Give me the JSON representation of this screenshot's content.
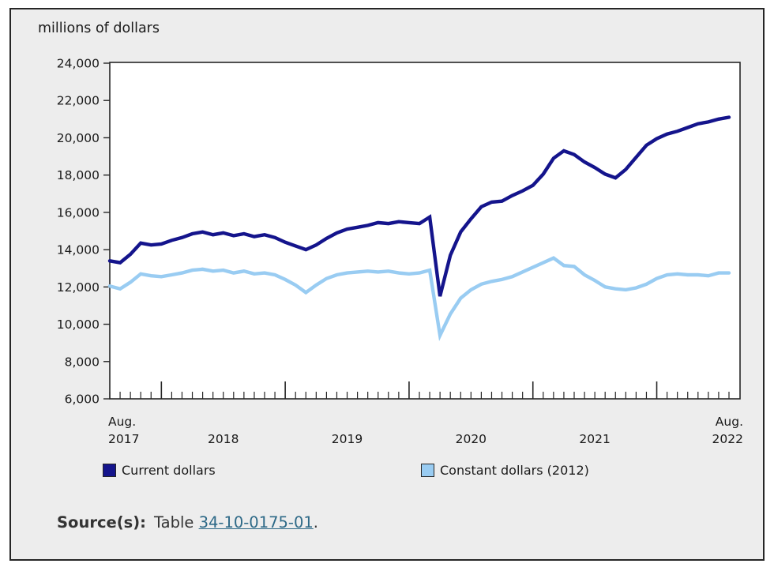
{
  "panel": {
    "title": "millions of dollars"
  },
  "chart_data": {
    "type": "line",
    "title": "millions of dollars",
    "ylabel": "millions of dollars",
    "ylim": [
      6000,
      24000
    ],
    "ytick_step": 2000,
    "grid": false,
    "legend_position": "bottom",
    "x_start": "Aug 2017",
    "x_end": "Aug 2022",
    "months": [
      "Aug 2017",
      "Sep 2017",
      "Oct 2017",
      "Nov 2017",
      "Dec 2017",
      "Jan 2018",
      "Feb 2018",
      "Mar 2018",
      "Apr 2018",
      "May 2018",
      "Jun 2018",
      "Jul 2018",
      "Aug 2018",
      "Sep 2018",
      "Oct 2018",
      "Nov 2018",
      "Dec 2018",
      "Jan 2019",
      "Feb 2019",
      "Mar 2019",
      "Apr 2019",
      "May 2019",
      "Jun 2019",
      "Jul 2019",
      "Aug 2019",
      "Sep 2019",
      "Oct 2019",
      "Nov 2019",
      "Dec 2019",
      "Jan 2020",
      "Feb 2020",
      "Mar 2020",
      "Apr 2020",
      "May 2020",
      "Jun 2020",
      "Jul 2020",
      "Aug 2020",
      "Sep 2020",
      "Oct 2020",
      "Nov 2020",
      "Dec 2020",
      "Jan 2021",
      "Feb 2021",
      "Mar 2021",
      "Apr 2021",
      "May 2021",
      "Jun 2021",
      "Jul 2021",
      "Aug 2021",
      "Sep 2021",
      "Oct 2021",
      "Nov 2021",
      "Dec 2021",
      "Jan 2022",
      "Feb 2022",
      "Mar 2022",
      "Apr 2022",
      "May 2022",
      "Jun 2022",
      "Jul 2022",
      "Aug 2022"
    ],
    "x_axis": {
      "major_tick_months": [
        5,
        17,
        29,
        41,
        53
      ],
      "labels": [
        {
          "month": 0,
          "lines": [
            "Aug.",
            "2017"
          ],
          "anchor": "start"
        },
        {
          "month": 11,
          "lines": [
            "",
            "2018"
          ],
          "anchor": "middle"
        },
        {
          "month": 23,
          "lines": [
            "",
            "2019"
          ],
          "anchor": "middle"
        },
        {
          "month": 35,
          "lines": [
            "",
            "2020"
          ],
          "anchor": "middle"
        },
        {
          "month": 47,
          "lines": [
            "",
            "2021"
          ],
          "anchor": "middle"
        },
        {
          "month": 60,
          "lines": [
            "Aug.",
            "2022"
          ],
          "anchor": "end"
        }
      ]
    },
    "series": [
      {
        "name": "Current dollars",
        "color": "#14148C",
        "values": [
          13400,
          13300,
          13750,
          14350,
          14250,
          14300,
          14500,
          14650,
          14850,
          14950,
          14800,
          14900,
          14750,
          14850,
          14700,
          14800,
          14650,
          14400,
          14200,
          14000,
          14250,
          14600,
          14900,
          15100,
          15200,
          15300,
          15450,
          15400,
          15500,
          15450,
          15400,
          15750,
          11500,
          13700,
          14950,
          15650,
          16300,
          16550,
          16600,
          16900,
          17150,
          17450,
          18050,
          18900,
          19300,
          19100,
          18700,
          18400,
          18050,
          17850,
          18300,
          18950,
          19600,
          19950,
          20200,
          20350,
          20550,
          20750,
          20850,
          21000,
          21100
        ]
      },
      {
        "name": "Constant dollars (2012)",
        "color": "#99CCF2",
        "values": [
          12050,
          11900,
          12250,
          12700,
          12600,
          12550,
          12650,
          12750,
          12900,
          12950,
          12850,
          12900,
          12750,
          12850,
          12700,
          12750,
          12650,
          12400,
          12100,
          11700,
          12100,
          12450,
          12650,
          12750,
          12800,
          12850,
          12800,
          12850,
          12750,
          12700,
          12750,
          12900,
          9400,
          10550,
          11400,
          11850,
          12150,
          12300,
          12400,
          12550,
          12800,
          13050,
          13300,
          13550,
          13150,
          13100,
          12650,
          12350,
          12000,
          11900,
          11850,
          11950,
          12150,
          12450,
          12650,
          12700,
          12650,
          12650,
          12600,
          12750,
          12750
        ]
      }
    ]
  },
  "legend": {
    "items": [
      {
        "label": "Current dollars"
      },
      {
        "label": "Constant dollars (2012)"
      }
    ]
  },
  "source": {
    "label": "Source(s):",
    "prefix": "Table ",
    "link": "34-10-0175-01",
    "suffix": "."
  }
}
